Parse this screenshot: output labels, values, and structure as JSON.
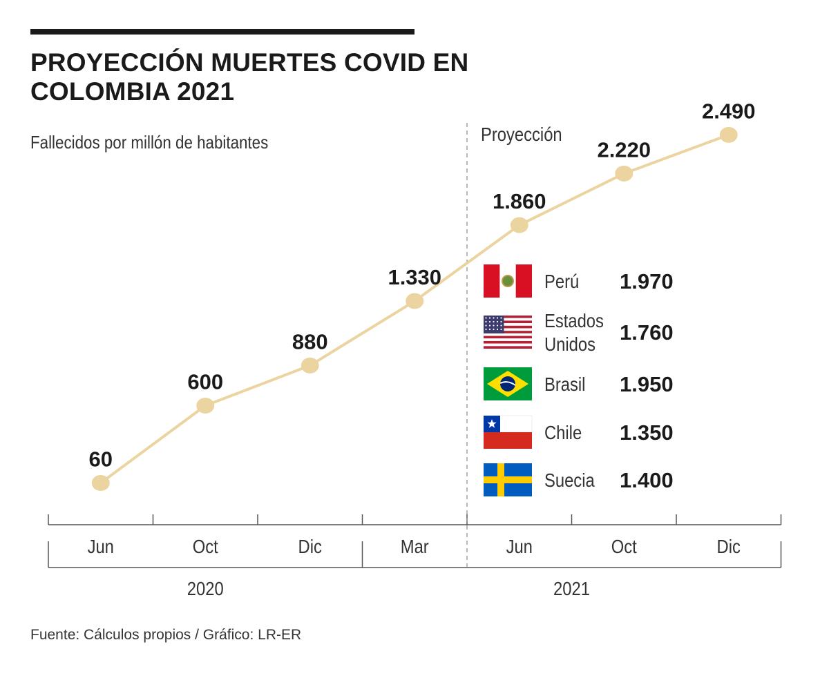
{
  "title": "PROYECCIÓN MUERTES COVID EN COLOMBIA 2021",
  "subtitle": "Fallecidos por millón de habitantes",
  "footer": "Fuente: Cálculos propios / Gráfico: LR-ER",
  "colors": {
    "line": "#ecd4a0",
    "marker": "#ecd4a0",
    "text": "#1a1a1a",
    "axis": "#555555"
  },
  "chart_data": {
    "type": "line",
    "categories": [
      "Jun",
      "Oct",
      "Dic",
      "Mar",
      "Jun",
      "Oct",
      "Dic"
    ],
    "values": [
      60,
      600,
      880,
      1330,
      1860,
      2220,
      2490
    ],
    "value_labels": [
      "60",
      "600",
      "880",
      "1.330",
      "1.860",
      "2.220",
      "2.490"
    ],
    "years": [
      {
        "label": "2020",
        "span": [
          0,
          2
        ]
      },
      {
        "label": "2021",
        "span": [
          3,
          6
        ]
      }
    ],
    "projection": {
      "label": "Proyección",
      "starts_between": [
        3,
        4
      ]
    },
    "ylim": [
      0,
      2600
    ],
    "grid": false,
    "comparison_legend": [
      {
        "country": "Perú",
        "value": "1.970",
        "flag": "peru-flag"
      },
      {
        "country": "Estados Unidos",
        "lines": [
          "Estados",
          "Unidos"
        ],
        "value": "1.760",
        "flag": "usa-flag"
      },
      {
        "country": "Brasil",
        "value": "1.950",
        "flag": "brazil-flag"
      },
      {
        "country": "Chile",
        "value": "1.350",
        "flag": "chile-flag"
      },
      {
        "country": "Suecia",
        "value": "1.400",
        "flag": "sweden-flag"
      }
    ]
  }
}
